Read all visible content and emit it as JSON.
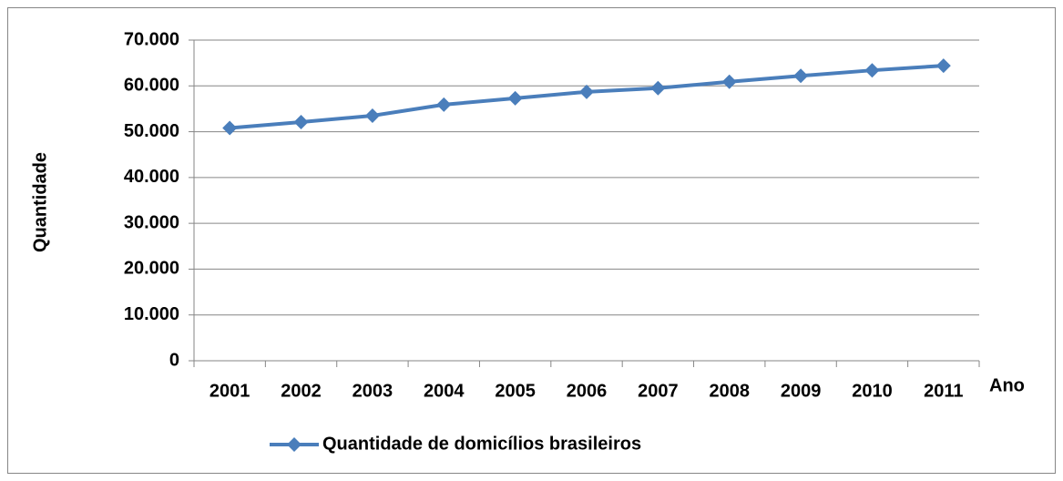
{
  "chart_data": {
    "type": "line",
    "categories": [
      "2001",
      "2002",
      "2003",
      "2004",
      "2005",
      "2006",
      "2007",
      "2008",
      "2009",
      "2010",
      "2011"
    ],
    "series": [
      {
        "name": "Quantidade de domicílios brasileiros",
        "color": "#4a7ebb",
        "values": [
          50800,
          52100,
          53500,
          55900,
          57300,
          58700,
          59500,
          60900,
          62200,
          63400,
          64400
        ]
      }
    ],
    "xlabel": "Ano",
    "ylabel": "Quantidade",
    "ylim": [
      0,
      70000
    ],
    "yticks": [
      0,
      {
        "value": 10000,
        "label": "10.000"
      },
      {
        "value": 20000,
        "label": "20.000"
      },
      {
        "value": 30000,
        "label": "30.000"
      },
      {
        "value": 40000,
        "label": "40.000"
      },
      {
        "value": 50000,
        "label": "50.000"
      },
      {
        "value": 60000,
        "label": "60.000"
      },
      {
        "value": 70000,
        "label": "70.000"
      }
    ],
    "grid": true,
    "legend": "bottom"
  }
}
